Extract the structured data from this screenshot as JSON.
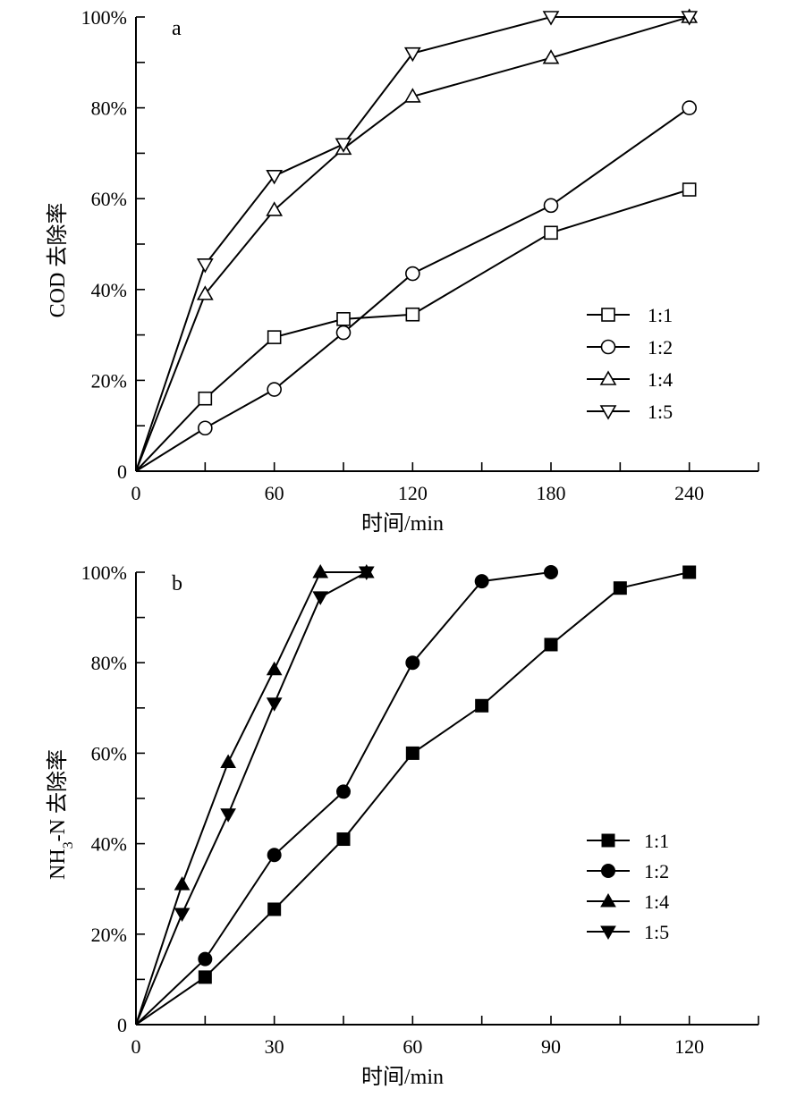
{
  "chart_data": [
    {
      "id": "a",
      "type": "line",
      "panel_label": "a",
      "xlabel": "时间/min",
      "ylabel": "COD 去除率",
      "xlim": [
        0,
        270
      ],
      "ylim": [
        0,
        100
      ],
      "x_ticks": [
        0,
        30,
        60,
        90,
        120,
        150,
        180,
        210,
        240,
        270
      ],
      "x_tick_labels": [
        "0",
        "",
        "60",
        "",
        "120",
        "",
        "180",
        "",
        "240",
        ""
      ],
      "y_ticks": [
        0,
        10,
        20,
        30,
        40,
        50,
        60,
        70,
        80,
        90,
        100
      ],
      "y_tick_labels": [
        "0",
        "",
        "20%",
        "",
        "40%",
        "",
        "60%",
        "",
        "80%",
        "",
        "100%"
      ],
      "marker_style": "open",
      "legend_position": "right-middle",
      "series": [
        {
          "name": "1:1",
          "marker": "square",
          "x": [
            0,
            30,
            60,
            90,
            120,
            180,
            240
          ],
          "values": [
            0,
            16,
            29.5,
            33.5,
            34.5,
            52.5,
            62
          ]
        },
        {
          "name": "1:2",
          "marker": "circle",
          "x": [
            0,
            30,
            60,
            90,
            120,
            180,
            240
          ],
          "values": [
            0,
            9.5,
            18,
            30.5,
            43.5,
            58.5,
            80
          ]
        },
        {
          "name": "1:4",
          "marker": "triangle-up",
          "x": [
            0,
            30,
            60,
            90,
            120,
            180,
            240
          ],
          "values": [
            0,
            39,
            57.5,
            71,
            82.5,
            91,
            100
          ]
        },
        {
          "name": "1:5",
          "marker": "triangle-down",
          "x": [
            0,
            30,
            60,
            90,
            120,
            180,
            240
          ],
          "values": [
            0,
            45.5,
            65,
            72,
            92,
            100,
            100
          ]
        }
      ]
    },
    {
      "id": "b",
      "type": "line",
      "panel_label": "b",
      "xlabel": "时间/min",
      "ylabel": "NH3-N 去除率",
      "ylabel_main": "NH",
      "ylabel_sub": "3",
      "ylabel_rest": "-N 去除率",
      "xlim": [
        0,
        135
      ],
      "ylim": [
        0,
        100
      ],
      "x_ticks": [
        0,
        15,
        30,
        45,
        60,
        75,
        90,
        105,
        120,
        135
      ],
      "x_tick_labels": [
        "0",
        "",
        "30",
        "",
        "60",
        "",
        "90",
        "",
        "120",
        ""
      ],
      "y_ticks": [
        0,
        10,
        20,
        30,
        40,
        50,
        60,
        70,
        80,
        90,
        100
      ],
      "y_tick_labels": [
        "0",
        "",
        "20%",
        "",
        "40%",
        "",
        "60%",
        "",
        "80%",
        "",
        "100%"
      ],
      "marker_style": "filled",
      "legend_position": "right-middle",
      "series": [
        {
          "name": "1:1",
          "marker": "square",
          "x": [
            0,
            15,
            30,
            45,
            60,
            75,
            90,
            105,
            120
          ],
          "values": [
            0,
            10.5,
            25.5,
            41,
            60,
            70.5,
            84,
            96.5,
            100
          ]
        },
        {
          "name": "1:2",
          "marker": "circle",
          "x": [
            0,
            15,
            30,
            45,
            60,
            75,
            90
          ],
          "values": [
            0,
            14.5,
            37.5,
            51.5,
            80,
            98,
            100
          ]
        },
        {
          "name": "1:4",
          "marker": "triangle-up",
          "x": [
            0,
            10,
            20,
            30,
            40,
            50
          ],
          "values": [
            0,
            31,
            58,
            78.5,
            100,
            100
          ]
        },
        {
          "name": "1:5",
          "marker": "triangle-down",
          "x": [
            0,
            10,
            20,
            30,
            40,
            50
          ],
          "values": [
            0,
            24.5,
            46.5,
            71,
            94.5,
            100
          ]
        }
      ]
    }
  ]
}
